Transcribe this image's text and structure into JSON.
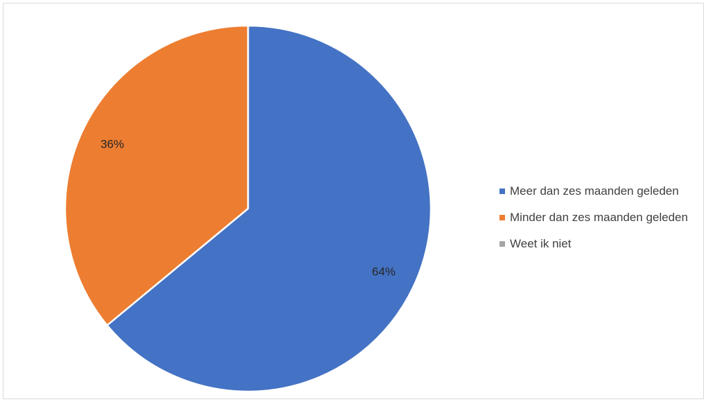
{
  "chart_data": {
    "type": "pie",
    "title": "",
    "slices": [
      {
        "label": "Meer dan zes maanden geleden",
        "value": 64,
        "value_label": "64%",
        "color": "#4472C4"
      },
      {
        "label": "Minder dan zes maanden geleden",
        "value": 36,
        "value_label": "36%",
        "color": "#ED7D31"
      },
      {
        "label": "Weet ik niet",
        "value": 0,
        "value_label": "",
        "color": "#A5A5A5"
      }
    ],
    "legend_position": "right"
  }
}
